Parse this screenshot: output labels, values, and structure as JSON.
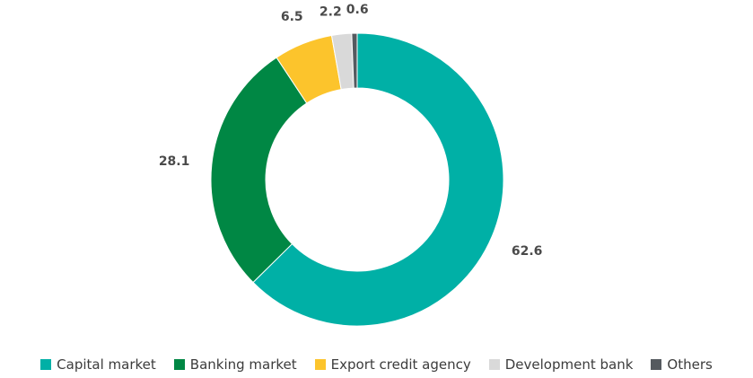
{
  "chart_data": {
    "type": "pie",
    "donut": true,
    "categories": [
      "Capital market",
      "Banking market",
      "Export credit agency",
      "Development bank",
      "Others"
    ],
    "values": [
      62.6,
      28.1,
      6.5,
      2.2,
      0.6
    ],
    "value_labels": [
      "62.6",
      "28.1",
      "6.5",
      "2.2",
      "0.6"
    ],
    "colors": [
      "#00b0a6",
      "#008744",
      "#fcc42c",
      "#d9d9d9",
      "#555a5f"
    ],
    "legend_position": "bottom",
    "start_angle_deg": 0,
    "direction": "clockwise"
  }
}
